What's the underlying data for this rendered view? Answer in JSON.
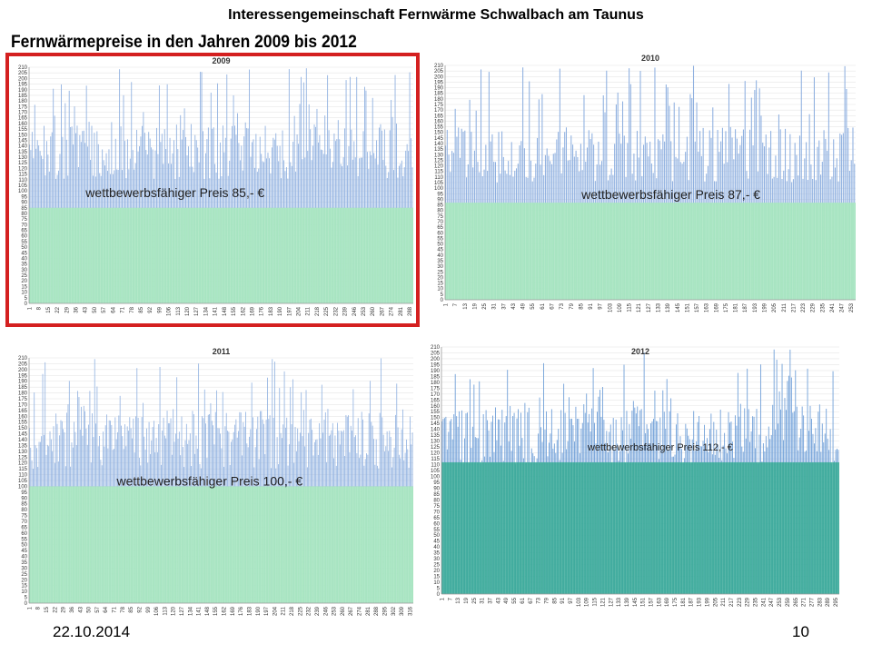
{
  "header": "Interessengemeinschaft Fernwärme Schwalbach am Taunus",
  "subtitle": "Fernwärmepreise in den Jahren 2009 bis 2012",
  "footer": {
    "date": "22.10.2014",
    "page": "10"
  },
  "colors": {
    "bar": "#8fb0e0",
    "fill_2009_2011": "#a8e6c0",
    "fill_2012": "#3aab98",
    "highlight": "#d42020"
  },
  "chart_data": [
    {
      "type": "bar",
      "title": "2009",
      "ylim": [
        0,
        210
      ],
      "yticks": [
        0,
        5,
        10,
        15,
        20,
        25,
        30,
        35,
        40,
        45,
        50,
        55,
        60,
        65,
        70,
        75,
        80,
        85,
        90,
        95,
        100,
        105,
        110,
        115,
        120,
        125,
        130,
        135,
        140,
        145,
        150,
        155,
        160,
        165,
        170,
        175,
        180,
        185,
        190,
        195,
        200,
        205,
        210
      ],
      "x_count": 290,
      "xticks": [
        1,
        8,
        15,
        22,
        29,
        36,
        43,
        50,
        57,
        64,
        71,
        78,
        85,
        92,
        99,
        106,
        113,
        120,
        127,
        134,
        141,
        148,
        155,
        162,
        169,
        176,
        183,
        190,
        197,
        204,
        211,
        218,
        225,
        232,
        239,
        246,
        253,
        260,
        267,
        274,
        281,
        288
      ],
      "competitive_price": 85,
      "annotation": "wettbewerbsfähiger Preis  85,- €",
      "price_range_estimate": [
        100,
        210
      ],
      "highlighted": true
    },
    {
      "type": "bar",
      "title": "2010",
      "ylim": [
        0,
        210
      ],
      "yticks": [
        0,
        5,
        10,
        15,
        20,
        25,
        30,
        35,
        40,
        45,
        50,
        55,
        60,
        65,
        70,
        75,
        80,
        85,
        90,
        95,
        100,
        105,
        110,
        115,
        120,
        125,
        130,
        135,
        140,
        145,
        150,
        155,
        160,
        165,
        170,
        175,
        180,
        185,
        190,
        195,
        200,
        205,
        210
      ],
      "x_count": 255,
      "xticks": [
        1,
        7,
        13,
        19,
        25,
        31,
        37,
        43,
        49,
        55,
        61,
        67,
        73,
        79,
        85,
        91,
        97,
        103,
        109,
        115,
        121,
        127,
        133,
        139,
        145,
        151,
        157,
        163,
        169,
        175,
        181,
        187,
        193,
        199,
        205,
        211,
        217,
        223,
        229,
        235,
        241,
        247,
        253
      ],
      "competitive_price": 87,
      "annotation": "wettbewerbsfähiger Preis  87,- €",
      "price_range_estimate": [
        95,
        210
      ],
      "highlighted": false
    },
    {
      "type": "bar",
      "title": "2011",
      "ylim": [
        0,
        210
      ],
      "yticks": [
        0,
        5,
        10,
        15,
        20,
        25,
        30,
        35,
        40,
        45,
        50,
        55,
        60,
        65,
        70,
        75,
        80,
        85,
        90,
        95,
        100,
        105,
        110,
        115,
        120,
        125,
        130,
        135,
        140,
        145,
        150,
        155,
        160,
        165,
        170,
        175,
        180,
        185,
        190,
        195,
        200,
        205,
        210
      ],
      "x_count": 318,
      "xticks": [
        1,
        8,
        15,
        22,
        29,
        36,
        43,
        50,
        57,
        64,
        71,
        78,
        85,
        92,
        99,
        106,
        113,
        120,
        127,
        134,
        141,
        148,
        155,
        162,
        169,
        176,
        183,
        190,
        197,
        204,
        211,
        218,
        225,
        232,
        239,
        246,
        253,
        260,
        267,
        274,
        281,
        288,
        295,
        302,
        309,
        316
      ],
      "competitive_price": 100,
      "annotation": "wettbewerbsfähiger Preis  100,- €",
      "price_range_estimate": [
        105,
        210
      ],
      "highlighted": false
    },
    {
      "type": "bar",
      "title": "2012",
      "ylim": [
        0,
        210
      ],
      "yticks": [
        0,
        5,
        10,
        15,
        20,
        25,
        30,
        35,
        40,
        45,
        50,
        55,
        60,
        65,
        70,
        75,
        80,
        85,
        90,
        95,
        100,
        105,
        110,
        115,
        120,
        125,
        130,
        135,
        140,
        145,
        150,
        155,
        160,
        165,
        170,
        175,
        180,
        185,
        190,
        195,
        200,
        205,
        210
      ],
      "x_count": 297,
      "xticks": [
        1,
        7,
        13,
        19,
        25,
        31,
        37,
        43,
        49,
        55,
        61,
        67,
        73,
        79,
        85,
        91,
        97,
        103,
        109,
        115,
        121,
        127,
        133,
        139,
        145,
        151,
        157,
        163,
        169,
        175,
        181,
        187,
        193,
        199,
        205,
        211,
        217,
        223,
        229,
        235,
        241,
        247,
        253,
        259,
        265,
        271,
        277,
        283,
        289,
        295
      ],
      "competitive_price": 112,
      "annotation": "wettbewerbsfähiger Preis 112,- €",
      "price_range_estimate": [
        100,
        210
      ],
      "highlighted": false
    }
  ]
}
